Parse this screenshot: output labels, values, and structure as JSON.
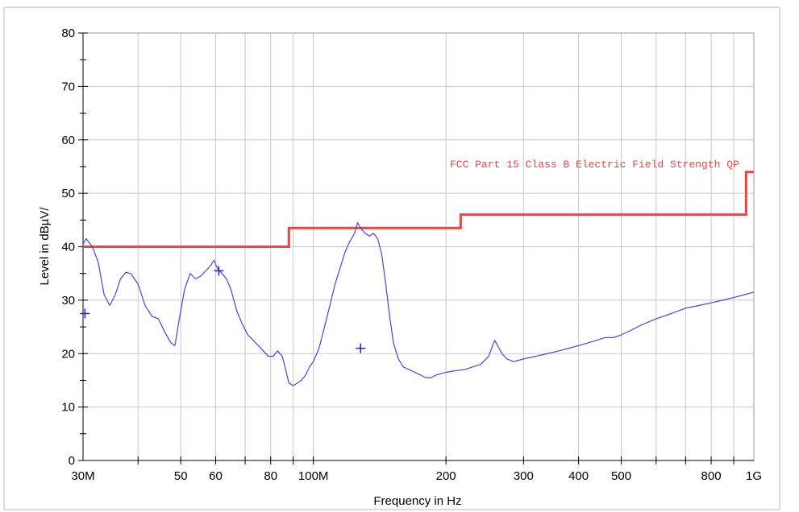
{
  "chart_data": {
    "type": "line",
    "title": "",
    "xlabel": "Frequency in Hz",
    "ylabel": "Level in dBµV/",
    "x_scale": "log",
    "xlim": [
      30000000,
      1000000000
    ],
    "ylim": [
      0,
      80
    ],
    "y_ticks": [
      0,
      10,
      20,
      30,
      40,
      50,
      60,
      70,
      80
    ],
    "x_ticks": [
      {
        "value": 30000000,
        "label": "30M"
      },
      {
        "value": 50000000,
        "label": "50"
      },
      {
        "value": 60000000,
        "label": "60"
      },
      {
        "value": 80000000,
        "label": "80"
      },
      {
        "value": 100000000,
        "label": "100M"
      },
      {
        "value": 200000000,
        "label": "200"
      },
      {
        "value": 300000000,
        "label": "300"
      },
      {
        "value": 400000000,
        "label": "400"
      },
      {
        "value": 500000000,
        "label": "500"
      },
      {
        "value": 800000000,
        "label": "800"
      },
      {
        "value": 1000000000,
        "label": "1G"
      }
    ],
    "grid": true,
    "limit_line": {
      "label": "FCC Part 15 Class B Electric Field Strength QP",
      "color": "#ee4444",
      "points": [
        [
          30000000,
          40
        ],
        [
          88000000,
          40
        ],
        [
          88000000,
          43.5
        ],
        [
          216000000,
          43.5
        ],
        [
          216000000,
          46
        ],
        [
          960000000,
          46
        ],
        [
          960000000,
          54
        ],
        [
          1000000000,
          54
        ]
      ]
    },
    "series": [
      {
        "color": "#4444ee",
        "points": [
          [
            30000000,
            40.5
          ],
          [
            30500000,
            41.5
          ],
          [
            31500000,
            40
          ],
          [
            32500000,
            37
          ],
          [
            33500000,
            31
          ],
          [
            34500000,
            29
          ],
          [
            35500000,
            31
          ],
          [
            36500000,
            34
          ],
          [
            37500000,
            35.2
          ],
          [
            38500000,
            35
          ],
          [
            40000000,
            33
          ],
          [
            41500000,
            29
          ],
          [
            43000000,
            27
          ],
          [
            44500000,
            26.5
          ],
          [
            46000000,
            24
          ],
          [
            47500000,
            22
          ],
          [
            48500000,
            21.5
          ],
          [
            49500000,
            26
          ],
          [
            51000000,
            32
          ],
          [
            52500000,
            35
          ],
          [
            54000000,
            34
          ],
          [
            55500000,
            34.5
          ],
          [
            57000000,
            35.5
          ],
          [
            58500000,
            36.5
          ],
          [
            59500000,
            37.5
          ],
          [
            60500000,
            36
          ],
          [
            62000000,
            35
          ],
          [
            63500000,
            34
          ],
          [
            65000000,
            32
          ],
          [
            67000000,
            28
          ],
          [
            69000000,
            25.5
          ],
          [
            71000000,
            23.5
          ],
          [
            73000000,
            22.5
          ],
          [
            75000000,
            21.5
          ],
          [
            77000000,
            20.5
          ],
          [
            79000000,
            19.5
          ],
          [
            81000000,
            19.5
          ],
          [
            83000000,
            20.5
          ],
          [
            85000000,
            19.5
          ],
          [
            86500000,
            17
          ],
          [
            88000000,
            14.5
          ],
          [
            90000000,
            14
          ],
          [
            92000000,
            14.5
          ],
          [
            94000000,
            15
          ],
          [
            96000000,
            16
          ],
          [
            98000000,
            17.5
          ],
          [
            100000000,
            18.5
          ],
          [
            103000000,
            21
          ],
          [
            106000000,
            25
          ],
          [
            109000000,
            29
          ],
          [
            112000000,
            33
          ],
          [
            115000000,
            36
          ],
          [
            118000000,
            39
          ],
          [
            121000000,
            41
          ],
          [
            124000000,
            42.5
          ],
          [
            126000000,
            44.5
          ],
          [
            128000000,
            43.5
          ],
          [
            131000000,
            42.5
          ],
          [
            134000000,
            42
          ],
          [
            137000000,
            42.5
          ],
          [
            140000000,
            41.5
          ],
          [
            143000000,
            38.5
          ],
          [
            146000000,
            33
          ],
          [
            149000000,
            27
          ],
          [
            152000000,
            22
          ],
          [
            156000000,
            19
          ],
          [
            160000000,
            17.5
          ],
          [
            165000000,
            17
          ],
          [
            170000000,
            16.5
          ],
          [
            175000000,
            16
          ],
          [
            180000000,
            15.5
          ],
          [
            185000000,
            15.5
          ],
          [
            190000000,
            16
          ],
          [
            200000000,
            16.5
          ],
          [
            210000000,
            16.8
          ],
          [
            220000000,
            17
          ],
          [
            230000000,
            17.5
          ],
          [
            240000000,
            18
          ],
          [
            250000000,
            19.5
          ],
          [
            258000000,
            22.5
          ],
          [
            262000000,
            21.5
          ],
          [
            268000000,
            20
          ],
          [
            275000000,
            19
          ],
          [
            285000000,
            18.5
          ],
          [
            300000000,
            19
          ],
          [
            320000000,
            19.5
          ],
          [
            340000000,
            20
          ],
          [
            360000000,
            20.5
          ],
          [
            380000000,
            21
          ],
          [
            400000000,
            21.5
          ],
          [
            420000000,
            22
          ],
          [
            440000000,
            22.5
          ],
          [
            460000000,
            23
          ],
          [
            480000000,
            23
          ],
          [
            500000000,
            23.5
          ],
          [
            530000000,
            24.5
          ],
          [
            560000000,
            25.5
          ],
          [
            600000000,
            26.5
          ],
          [
            650000000,
            27.5
          ],
          [
            700000000,
            28.5
          ],
          [
            750000000,
            29
          ],
          [
            800000000,
            29.5
          ],
          [
            850000000,
            30
          ],
          [
            900000000,
            30.5
          ],
          [
            950000000,
            31
          ],
          [
            1000000000,
            31.5
          ]
        ]
      }
    ],
    "markers": [
      {
        "x": 30300000,
        "y": 27.5
      },
      {
        "x": 61000000,
        "y": 35.5
      },
      {
        "x": 128000000,
        "y": 21
      }
    ]
  }
}
